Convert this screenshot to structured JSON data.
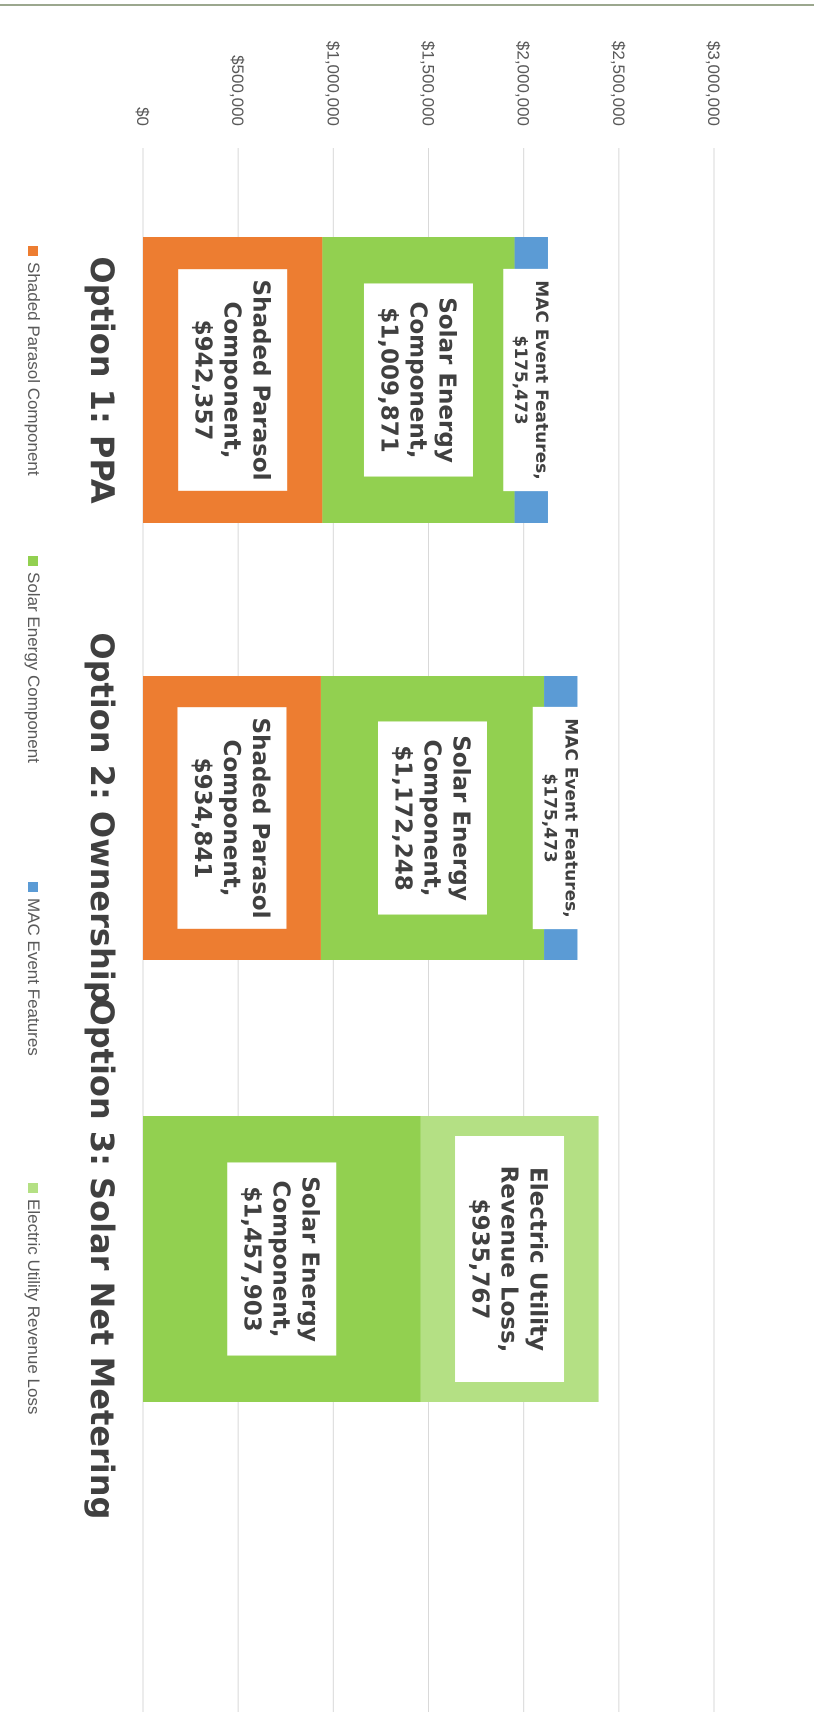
{
  "chart_data": {
    "type": "bar",
    "stacked": true,
    "orientation": "horizontal",
    "rotated_page": "90deg-clockwise",
    "xlim": [
      0,
      3000000
    ],
    "ticks": [
      "$0",
      "$500,000",
      "$1,000,000",
      "$1,500,000",
      "$2,000,000",
      "$2,500,000",
      "$3,000,000"
    ],
    "grid": true,
    "legend_position": "bottom",
    "categories": [
      "Option 1: PPA",
      "Option 2: Ownership",
      "Option 3: Solar Net Metering"
    ],
    "series": [
      {
        "name": "Shaded Parasol Component",
        "color": "#ED7D31",
        "values": [
          942357,
          934841,
          0
        ]
      },
      {
        "name": "Solar Energy Component",
        "color": "#92D050",
        "values": [
          1009871,
          1172248,
          1457903
        ]
      },
      {
        "name": "MAC Event Features",
        "color": "#5B9BD5",
        "values": [
          175473,
          175473,
          0
        ]
      },
      {
        "name": "Electric Utility Revenue Loss",
        "color": "#B4E084",
        "values": [
          0,
          0,
          935767
        ]
      }
    ],
    "data_labels": [
      {
        "series": 0,
        "category": 0,
        "lines": [
          "Shaded Parasol",
          "Component,",
          "$942,357"
        ]
      },
      {
        "series": 1,
        "category": 0,
        "lines": [
          "Solar Energy",
          "Component,",
          "$1,009,871"
        ]
      },
      {
        "series": 2,
        "category": 0,
        "lines": [
          "MAC Event Features,",
          "$175,473"
        ]
      },
      {
        "series": 0,
        "category": 1,
        "lines": [
          "Shaded Parasol",
          "Component,",
          "$934,841"
        ]
      },
      {
        "series": 1,
        "category": 1,
        "lines": [
          "Solar Energy",
          "Component,",
          "$1,172,248"
        ]
      },
      {
        "series": 2,
        "category": 1,
        "lines": [
          "MAC Event Features,",
          "$175,473"
        ]
      },
      {
        "series": 1,
        "category": 2,
        "lines": [
          "Solar Energy",
          "Component,",
          "$1,457,903"
        ]
      },
      {
        "series": 3,
        "category": 2,
        "lines": [
          "Electric Utility",
          "Revenue Loss,",
          "$935,767"
        ]
      }
    ]
  }
}
